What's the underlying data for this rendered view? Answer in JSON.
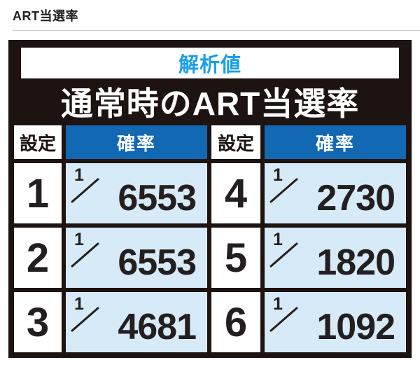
{
  "page": {
    "title": "ART当選率"
  },
  "panel": {
    "badge": "解析値",
    "title": "通常時のART当選率"
  },
  "table": {
    "headers": [
      "設定",
      "確率",
      "設定",
      "確率"
    ],
    "rows": [
      {
        "left": {
          "setting": "1",
          "num": "1",
          "denom": "6553"
        },
        "right": {
          "setting": "4",
          "num": "1",
          "denom": "2730"
        }
      },
      {
        "left": {
          "setting": "2",
          "num": "1",
          "denom": "6553"
        },
        "right": {
          "setting": "5",
          "num": "1",
          "denom": "1820"
        }
      },
      {
        "left": {
          "setting": "3",
          "num": "1",
          "denom": "4681"
        },
        "right": {
          "setting": "6",
          "num": "1",
          "denom": "1092"
        }
      }
    ]
  },
  "colors": {
    "badge_text": "#1b9ee8",
    "header_blue": "#1268b3",
    "cell_light_blue": "#d7eaf7",
    "panel_black": "#1d1310",
    "rule_gray": "#cccccc"
  }
}
